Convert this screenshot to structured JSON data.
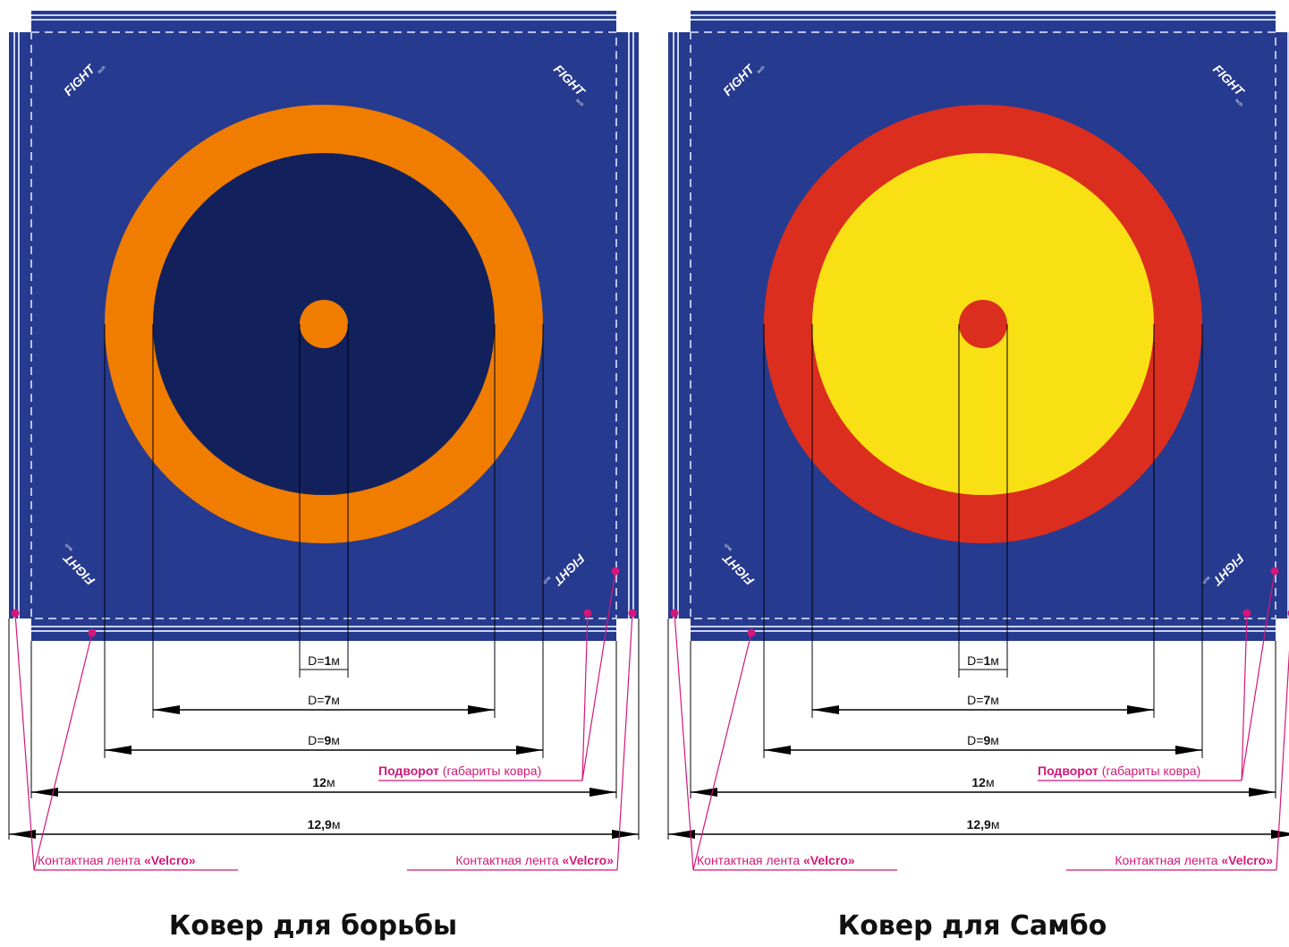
{
  "colors": {
    "mat_blue": "#263a8f",
    "stripe_light": "#c9d3f0",
    "dash": "#b8c2e6",
    "line": "#000000",
    "accent_magenta": "#d4177a",
    "wrestling_ring": "#f07d00",
    "wrestling_center": "#12215c",
    "sambo_ring": "#dc2e1e",
    "sambo_center": "#f8e015"
  },
  "logo_text": "FIGHT",
  "logo_suffix": "tech",
  "mats": [
    {
      "id": "wrestling",
      "caption": "Ковер для борьбы",
      "ring_color": "#f07d00",
      "center_color": "#12215c",
      "dot_color": "#f07d00",
      "dims": {
        "d1": {
          "prefix": "D=",
          "num": "1",
          "unit": "м"
        },
        "d7": {
          "prefix": "D=",
          "num": "7",
          "unit": "м"
        },
        "d9": {
          "prefix": "D=",
          "num": "9",
          "unit": "м"
        },
        "w12": {
          "num": "12",
          "unit": "м"
        },
        "w129": {
          "num": "12,9",
          "unit": "м"
        }
      },
      "fold_label": {
        "bold": "Подворот",
        "rest": " (габариты ковра)"
      },
      "velcro_left": {
        "rest": "Контактная лента ",
        "bold": "«Velcro»"
      },
      "velcro_right": {
        "rest": "Контактная лента ",
        "bold": "«Velcro»"
      }
    },
    {
      "id": "sambo",
      "caption": "Ковер для Самбо",
      "ring_color": "#dc2e1e",
      "center_color": "#f8e015",
      "dot_color": "#dc2e1e",
      "dims": {
        "d1": {
          "prefix": "D=",
          "num": "1",
          "unit": "м"
        },
        "d7": {
          "prefix": "D=",
          "num": "7",
          "unit": "м"
        },
        "d9": {
          "prefix": "D=",
          "num": "9",
          "unit": "м"
        },
        "w12": {
          "num": "12",
          "unit": "м"
        },
        "w129": {
          "num": "12,9",
          "unit": "м"
        }
      },
      "fold_label": {
        "bold": "Подворот",
        "rest": " (габариты ковра)"
      },
      "velcro_left": {
        "rest": "Контактная лента ",
        "bold": "«Velcro»"
      },
      "velcro_right": {
        "rest": "Контактная лента ",
        "bold": "«Velcro»"
      }
    }
  ]
}
